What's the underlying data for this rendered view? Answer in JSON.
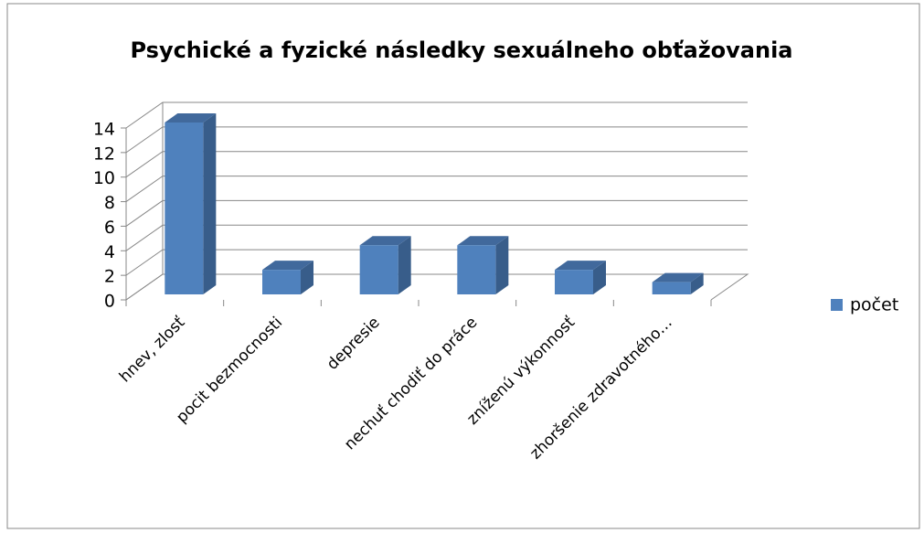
{
  "chart_data": {
    "type": "bar3d",
    "title": "Psychické a fyzické následky sexuálneho obťažovania",
    "categories": [
      "hnev, zlosť",
      "pocit bezmocnosti",
      "depresie",
      "nechuť chodiť do práce",
      "zníženú výkonnosť",
      "zhoršenie zdravotného…"
    ],
    "series": [
      {
        "name": "počet",
        "color": "#4f81bd",
        "values": [
          14,
          2,
          4,
          4,
          2,
          1
        ]
      }
    ],
    "ylim": [
      0,
      14
    ],
    "yticks": [
      0,
      2,
      4,
      6,
      8,
      10,
      12,
      14
    ],
    "grid": true,
    "legend": "right"
  }
}
